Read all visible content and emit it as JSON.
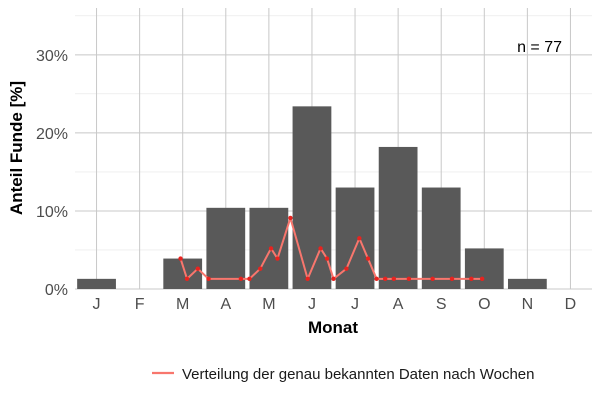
{
  "chart_data": {
    "type": "bar",
    "categories": [
      "J",
      "F",
      "M",
      "A",
      "M",
      "J",
      "J",
      "A",
      "S",
      "O",
      "N",
      "D"
    ],
    "values": [
      1.3,
      0,
      3.9,
      10.4,
      10.4,
      23.4,
      13.0,
      18.2,
      13.0,
      5.2,
      1.3,
      0
    ],
    "xlabel": "Monat",
    "ylabel": "Anteil Funde [%]",
    "ylim": [
      0,
      36
    ],
    "yticks": [
      0,
      10,
      20,
      30
    ],
    "ytick_labels": [
      "0%",
      "10%",
      "20%",
      "30%"
    ],
    "grid": true,
    "bar_color": "#595959",
    "annotation": "n = 77",
    "line_series": {
      "name": "Verteilung der genau bekannten Daten nach Wochen",
      "color": "#F8766D",
      "x_month": [
        2.45,
        2.6,
        2.85,
        3.1,
        3.85,
        4.05,
        4.3,
        4.55,
        4.7,
        5.0,
        5.4,
        5.7,
        5.85,
        6.0,
        6.3,
        6.6,
        6.8,
        7.0,
        7.2,
        7.4,
        7.75,
        8.3,
        8.75,
        9.2,
        9.45
      ],
      "y_percent": [
        3.9,
        1.3,
        2.6,
        1.3,
        1.3,
        1.3,
        2.6,
        5.2,
        3.9,
        9.1,
        1.3,
        5.2,
        3.9,
        1.3,
        2.6,
        6.5,
        3.9,
        1.3,
        1.3,
        1.3,
        1.3,
        1.3,
        1.3,
        1.3,
        1.3
      ]
    },
    "legend_position": "bottom"
  }
}
